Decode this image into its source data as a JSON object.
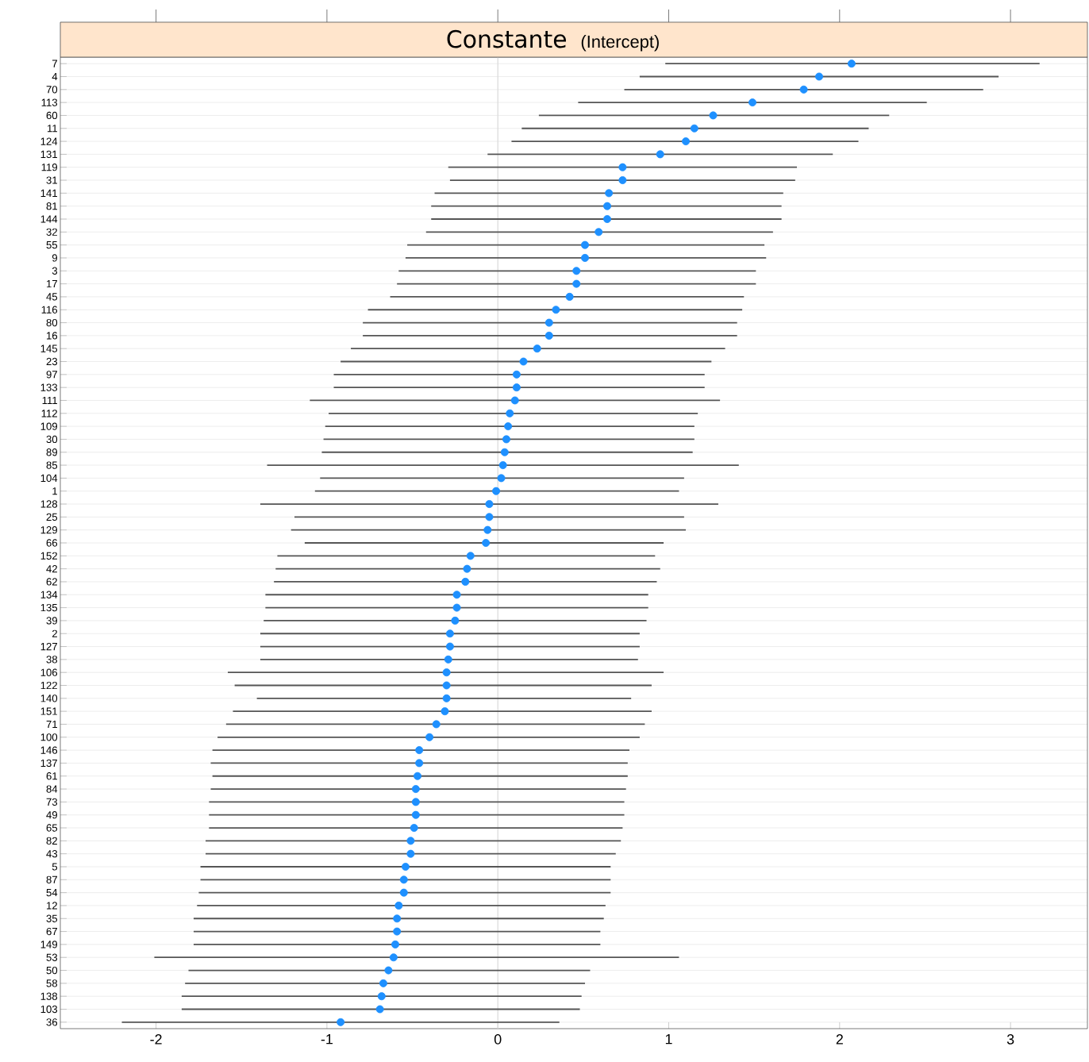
{
  "chart_data": {
    "type": "scatter",
    "orientation": "horizontal",
    "title": "Constante",
    "subtitle": "(Intercept)",
    "categories": [
      "7",
      "4",
      "70",
      "113",
      "60",
      "11",
      "124",
      "131",
      "119",
      "31",
      "141",
      "81",
      "144",
      "32",
      "55",
      "9",
      "3",
      "17",
      "45",
      "116",
      "80",
      "16",
      "145",
      "23",
      "97",
      "133",
      "111",
      "112",
      "109",
      "30",
      "89",
      "85",
      "104",
      "1",
      "128",
      "25",
      "129",
      "66",
      "152",
      "42",
      "62",
      "134",
      "135",
      "39",
      "2",
      "127",
      "38",
      "106",
      "122",
      "140",
      "151",
      "71",
      "100",
      "146",
      "137",
      "61",
      "84",
      "73",
      "49",
      "65",
      "82",
      "43",
      "5",
      "87",
      "54",
      "12",
      "35",
      "67",
      "149",
      "53",
      "50",
      "58",
      "138",
      "103",
      "36"
    ],
    "values": [
      2.07,
      1.88,
      1.79,
      1.49,
      1.26,
      1.15,
      1.1,
      0.95,
      0.73,
      0.73,
      0.65,
      0.64,
      0.64,
      0.59,
      0.51,
      0.51,
      0.46,
      0.46,
      0.42,
      0.34,
      0.3,
      0.3,
      0.23,
      0.15,
      0.11,
      0.11,
      0.1,
      0.07,
      0.06,
      0.05,
      0.04,
      0.03,
      0.02,
      -0.01,
      -0.05,
      -0.05,
      -0.06,
      -0.07,
      -0.16,
      -0.18,
      -0.19,
      -0.24,
      -0.24,
      -0.25,
      -0.28,
      -0.28,
      -0.29,
      -0.3,
      -0.3,
      -0.3,
      -0.31,
      -0.36,
      -0.4,
      -0.46,
      -0.46,
      -0.47,
      -0.48,
      -0.48,
      -0.48,
      -0.49,
      -0.51,
      -0.51,
      -0.54,
      -0.55,
      -0.55,
      -0.58,
      -0.59,
      -0.59,
      -0.6,
      -0.61,
      -0.64,
      -0.67,
      -0.68,
      -0.69,
      -0.92
    ],
    "errors": [
      [
        0.98,
        3.17
      ],
      [
        0.83,
        2.93
      ],
      [
        0.74,
        2.84
      ],
      [
        0.47,
        2.51
      ],
      [
        0.24,
        2.29
      ],
      [
        0.14,
        2.17
      ],
      [
        0.08,
        2.11
      ],
      [
        -0.06,
        1.96
      ],
      [
        -0.29,
        1.75
      ],
      [
        -0.28,
        1.74
      ],
      [
        -0.37,
        1.67
      ],
      [
        -0.39,
        1.66
      ],
      [
        -0.39,
        1.66
      ],
      [
        -0.42,
        1.61
      ],
      [
        -0.53,
        1.56
      ],
      [
        -0.54,
        1.57
      ],
      [
        -0.58,
        1.51
      ],
      [
        -0.59,
        1.51
      ],
      [
        -0.63,
        1.44
      ],
      [
        -0.76,
        1.43
      ],
      [
        -0.79,
        1.4
      ],
      [
        -0.79,
        1.4
      ],
      [
        -0.86,
        1.33
      ],
      [
        -0.92,
        1.25
      ],
      [
        -0.96,
        1.21
      ],
      [
        -0.96,
        1.21
      ],
      [
        -1.1,
        1.3
      ],
      [
        -0.99,
        1.17
      ],
      [
        -1.01,
        1.15
      ],
      [
        -1.02,
        1.15
      ],
      [
        -1.03,
        1.14
      ],
      [
        -1.35,
        1.41
      ],
      [
        -1.04,
        1.09
      ],
      [
        -1.07,
        1.06
      ],
      [
        -1.39,
        1.29
      ],
      [
        -1.19,
        1.09
      ],
      [
        -1.21,
        1.1
      ],
      [
        -1.13,
        0.97
      ],
      [
        -1.29,
        0.92
      ],
      [
        -1.3,
        0.95
      ],
      [
        -1.31,
        0.93
      ],
      [
        -1.36,
        0.88
      ],
      [
        -1.36,
        0.88
      ],
      [
        -1.37,
        0.87
      ],
      [
        -1.39,
        0.83
      ],
      [
        -1.39,
        0.83
      ],
      [
        -1.39,
        0.82
      ],
      [
        -1.58,
        0.97
      ],
      [
        -1.54,
        0.9
      ],
      [
        -1.41,
        0.78
      ],
      [
        -1.55,
        0.9
      ],
      [
        -1.59,
        0.86
      ],
      [
        -1.64,
        0.83
      ],
      [
        -1.67,
        0.77
      ],
      [
        -1.68,
        0.76
      ],
      [
        -1.67,
        0.76
      ],
      [
        -1.68,
        0.75
      ],
      [
        -1.69,
        0.74
      ],
      [
        -1.69,
        0.74
      ],
      [
        -1.69,
        0.73
      ],
      [
        -1.71,
        0.72
      ],
      [
        -1.71,
        0.69
      ],
      [
        -1.74,
        0.66
      ],
      [
        -1.74,
        0.66
      ],
      [
        -1.75,
        0.66
      ],
      [
        -1.76,
        0.63
      ],
      [
        -1.78,
        0.62
      ],
      [
        -1.78,
        0.6
      ],
      [
        -1.78,
        0.6
      ],
      [
        -2.01,
        1.06
      ],
      [
        -1.81,
        0.54
      ],
      [
        -1.83,
        0.51
      ],
      [
        -1.85,
        0.49
      ],
      [
        -1.85,
        0.48
      ],
      [
        -2.2,
        0.36
      ]
    ],
    "color": "#1e90ff",
    "marker": "circle",
    "grid": "y",
    "xlim": [
      -2.56,
      3.45
    ],
    "xticks": [
      -2,
      -1,
      0,
      1,
      2,
      3
    ],
    "ref_lines": [
      {
        "axis": "x",
        "value": 0,
        "color": "#d9d9d9"
      }
    ]
  }
}
